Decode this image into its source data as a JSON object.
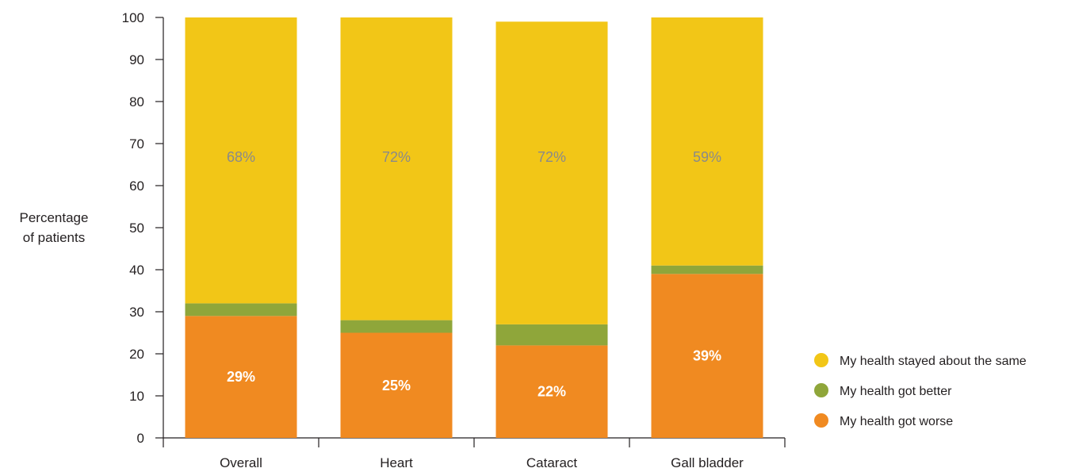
{
  "chart_data": {
    "type": "bar",
    "stacked": true,
    "title": "",
    "ylabel": [
      "Percentage",
      "of patients"
    ],
    "xlabel": "",
    "ylim": [
      0,
      100
    ],
    "yticks": [
      0,
      10,
      20,
      30,
      40,
      50,
      60,
      70,
      80,
      90,
      100
    ],
    "categories": [
      "Overall",
      "Heart",
      "Cataract",
      "Gall bladder"
    ],
    "series": [
      {
        "name": "My health got worse",
        "color": "#f08a21",
        "values": [
          29,
          25,
          22,
          39
        ],
        "labels": [
          "29%",
          "25%",
          "22%",
          "39%"
        ]
      },
      {
        "name": "My health got better",
        "color": "#8fa63a",
        "values": [
          3,
          3,
          5,
          2
        ],
        "labels": [
          "",
          "",
          "",
          ""
        ]
      },
      {
        "name": "My health stayed about the same",
        "color": "#f2c617",
        "values": [
          68,
          72,
          72,
          59
        ],
        "labels": [
          "68%",
          "72%",
          "72%",
          "59%"
        ]
      }
    ],
    "legend": {
      "placement": "bottom-right",
      "order": [
        "My health stayed about the same",
        "My health got better",
        "My health got worse"
      ]
    },
    "grid": false
  }
}
